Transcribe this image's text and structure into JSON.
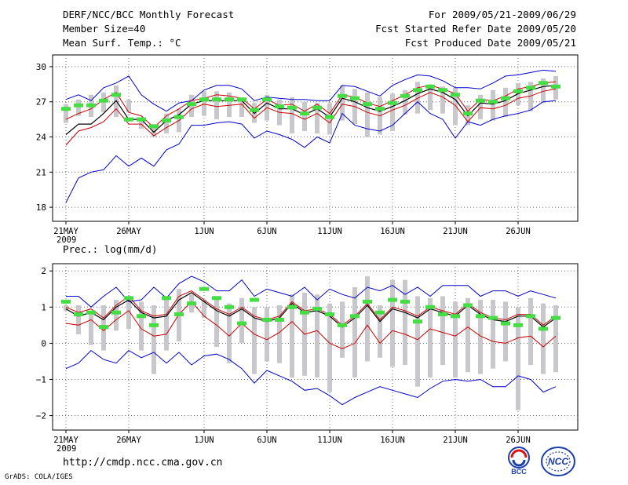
{
  "header": {
    "left": [
      "DERF/NCC/BCC Monthly Forecast",
      "Member Size=40",
      "Mean Surf. Temp.: °C"
    ],
    "right": [
      "For 2009/05/21-2009/06/29",
      "Fcst Started Refer Date 2009/05/20",
      "Fcst Produced Date 2009/05/21"
    ]
  },
  "footer": {
    "url": "http://cmdp.ncc.cma.gov.cn",
    "credit": "GrADS: COLA/IGES",
    "logo_bcc": "BCC",
    "logo_ncc": "NCC"
  },
  "colors": {
    "envelope": "#0000cc",
    "spread_lines": "#cc0000",
    "ensemble_mean": "#000000",
    "observed": "#44dd44",
    "iqr_bars": "#c8c8cc",
    "grid": "#666666"
  },
  "chart_data": [
    {
      "type": "line",
      "title": "Mean Surf. Temp.: °C",
      "x_tick_labels": [
        "21MAY",
        "26MAY",
        "1JUN",
        "6JUN",
        "11JUN",
        "16JUN",
        "21JUN",
        "26JUN"
      ],
      "x_tick_days": [
        1,
        6,
        12,
        17,
        22,
        27,
        32,
        37
      ],
      "year_label": "2009",
      "days": 40,
      "ylim": [
        16.8,
        31.0
      ],
      "y_ticks": [
        18,
        21,
        24,
        27,
        30
      ],
      "series": [
        {
          "name": "max",
          "values": [
            18.4,
            20.5,
            21.0,
            21.2,
            22.4,
            21.5,
            22.2,
            21.5,
            22.9,
            23.4,
            25.0,
            25.0,
            25.2,
            25.3,
            25.1,
            23.9,
            24.5,
            24.2,
            23.8,
            23.1,
            24.0,
            23.5,
            26.0,
            25.0,
            24.7,
            24.5,
            25.0,
            26.0,
            27.0,
            26.0,
            25.5,
            23.9,
            25.3,
            25.0,
            25.5,
            25.8,
            26.0,
            26.3,
            27.0,
            27.1
          ]
        },
        {
          "name": "min",
          "values": [
            27.2,
            27.6,
            27.1,
            28.2,
            28.6,
            29.2,
            27.6,
            26.8,
            26.2,
            26.9,
            27.1,
            28.0,
            28.4,
            28.4,
            28.1,
            27.1,
            27.4,
            27.3,
            27.2,
            27.2,
            27.1,
            27.1,
            28.4,
            28.3,
            27.9,
            27.5,
            28.4,
            28.9,
            29.3,
            29.2,
            28.8,
            28.2,
            28.2,
            28.1,
            28.6,
            29.2,
            29.3,
            29.5,
            29.7,
            29.6
          ]
        },
        {
          "name": "ensemble_mean",
          "values": [
            24.2,
            25.1,
            25.1,
            26.0,
            27.1,
            25.5,
            25.5,
            24.4,
            25.4,
            25.9,
            26.8,
            27.1,
            27.1,
            27.1,
            27.1,
            26.0,
            26.9,
            26.4,
            26.4,
            25.9,
            26.4,
            25.7,
            27.3,
            27.0,
            26.5,
            26.2,
            26.6,
            27.1,
            27.7,
            28.1,
            27.8,
            27.2,
            25.8,
            26.9,
            26.8,
            27.1,
            27.7,
            28.0,
            28.3,
            28.4
          ]
        },
        {
          "name": "spread_upper",
          "values": [
            25.5,
            26.0,
            26.4,
            27.2,
            27.8,
            26.1,
            25.8,
            24.8,
            25.8,
            26.4,
            27.1,
            27.3,
            27.6,
            27.5,
            27.3,
            26.4,
            27.2,
            26.7,
            26.8,
            26.2,
            26.8,
            26.0,
            27.6,
            27.4,
            26.9,
            26.6,
            27.1,
            27.6,
            28.2,
            28.4,
            28.1,
            27.7,
            26.2,
            27.2,
            27.1,
            27.5,
            28.1,
            28.3,
            28.6,
            28.7
          ]
        },
        {
          "name": "spread_lower",
          "values": [
            23.3,
            24.5,
            24.8,
            25.3,
            26.4,
            25.1,
            25.1,
            24.1,
            24.8,
            25.4,
            26.4,
            26.8,
            26.6,
            26.7,
            26.8,
            25.6,
            26.5,
            26.1,
            26.0,
            25.5,
            26.0,
            25.2,
            26.8,
            26.6,
            26.1,
            25.8,
            26.3,
            26.7,
            27.3,
            27.8,
            27.4,
            26.7,
            25.3,
            26.5,
            26.4,
            26.7,
            27.3,
            27.5,
            27.9,
            28.1
          ]
        },
        {
          "name": "iqr_bottom",
          "values": [
            25.2,
            25.8,
            25.7,
            26.1,
            25.7,
            26.1,
            24.7,
            24.0,
            24.3,
            24.4,
            25.7,
            25.8,
            25.5,
            25.7,
            25.7,
            25.2,
            25.4,
            25.0,
            24.3,
            24.5,
            24.3,
            24.2,
            25.4,
            25.1,
            24.0,
            24.2,
            24.5,
            25.9,
            26.0,
            26.3,
            26.0,
            25.0,
            25.0,
            25.5,
            25.4,
            25.7,
            26.7,
            26.2,
            26.9,
            27.2
          ]
        },
        {
          "name": "iqr_top",
          "values": [
            26.8,
            27.2,
            27.6,
            27.8,
            28.4,
            27.2,
            25.6,
            25.1,
            26.0,
            26.4,
            27.6,
            27.9,
            27.9,
            27.8,
            27.2,
            26.9,
            27.6,
            27.2,
            27.4,
            27.0,
            26.9,
            26.9,
            28.4,
            28.1,
            27.8,
            27.4,
            27.7,
            28.0,
            28.7,
            28.5,
            28.3,
            28.2,
            26.7,
            27.6,
            28.0,
            28.2,
            28.6,
            28.7,
            29.0,
            29.2
          ]
        },
        {
          "name": "observed",
          "values": [
            26.4,
            26.7,
            26.7,
            27.1,
            27.6,
            25.5,
            25.5,
            24.9,
            25.4,
            25.7,
            26.8,
            27.2,
            27.2,
            27.2,
            27.2,
            26.3,
            27.2,
            26.6,
            26.5,
            26.0,
            26.5,
            25.7,
            27.5,
            27.3,
            26.8,
            26.4,
            26.9,
            27.5,
            28.0,
            28.3,
            28.0,
            27.6,
            26.0,
            27.1,
            27.0,
            27.3,
            27.9,
            28.2,
            28.6,
            28.3
          ]
        }
      ]
    },
    {
      "type": "line",
      "title": "Prec.: log(mm/d)",
      "x_tick_labels": [
        "21MAY",
        "26MAY",
        "1JUN",
        "6JUN",
        "11JUN",
        "16JUN",
        "21JUN",
        "26JUN"
      ],
      "x_tick_days": [
        1,
        6,
        12,
        17,
        22,
        27,
        32,
        37
      ],
      "year_label": "2009",
      "days": 40,
      "ylim": [
        -2.4,
        2.2
      ],
      "y_ticks": [
        -2,
        -1,
        0,
        1,
        2
      ],
      "series": [
        {
          "name": "max",
          "values": [
            -0.7,
            -0.55,
            -0.2,
            -0.45,
            -0.55,
            -0.2,
            -0.4,
            -0.25,
            -0.55,
            -0.25,
            -0.6,
            -0.35,
            -0.3,
            -0.45,
            -0.7,
            -1.1,
            -0.75,
            -0.9,
            -1.05,
            -1.3,
            -1.25,
            -1.45,
            -1.7,
            -1.5,
            -1.35,
            -1.2,
            -1.3,
            -1.4,
            -1.5,
            -1.25,
            -1.05,
            -1.0,
            -1.05,
            -1.0,
            -1.2,
            -1.2,
            -0.9,
            -1.0,
            -1.35,
            -1.2
          ]
        },
        {
          "name": "min",
          "values": [
            1.3,
            1.3,
            1.0,
            1.3,
            1.55,
            1.15,
            1.2,
            1.55,
            1.25,
            1.65,
            1.85,
            1.7,
            1.45,
            1.45,
            1.75,
            1.3,
            1.5,
            1.4,
            1.3,
            1.55,
            1.2,
            1.5,
            1.35,
            1.25,
            1.55,
            1.45,
            1.6,
            1.35,
            1.55,
            1.3,
            1.6,
            1.6,
            1.6,
            1.3,
            1.45,
            1.45,
            1.3,
            1.45,
            1.35,
            1.25
          ]
        },
        {
          "name": "ensemble_mean",
          "values": [
            0.95,
            0.75,
            0.85,
            0.65,
            1.0,
            1.2,
            0.85,
            0.7,
            0.75,
            1.2,
            1.4,
            1.15,
            0.9,
            0.75,
            0.95,
            0.7,
            0.6,
            0.7,
            1.1,
            0.85,
            0.9,
            0.75,
            0.45,
            0.7,
            1.05,
            0.6,
            0.95,
            0.85,
            0.7,
            0.95,
            0.85,
            0.75,
            1.05,
            0.8,
            0.65,
            0.6,
            0.75,
            0.75,
            0.45,
            0.7
          ]
        },
        {
          "name": "spread_upper",
          "values": [
            1.0,
            0.85,
            0.95,
            0.7,
            1.05,
            1.3,
            0.9,
            0.75,
            0.8,
            1.3,
            1.45,
            1.2,
            0.95,
            0.8,
            1.0,
            0.75,
            0.65,
            0.75,
            1.15,
            0.9,
            0.95,
            0.8,
            0.5,
            0.75,
            1.1,
            0.65,
            1.0,
            0.9,
            0.75,
            1.0,
            0.9,
            0.8,
            1.1,
            0.85,
            0.7,
            0.65,
            0.8,
            0.8,
            0.5,
            0.75
          ]
        },
        {
          "name": "spread_lower",
          "values": [
            0.55,
            0.5,
            0.65,
            0.35,
            0.65,
            0.9,
            0.4,
            0.2,
            0.25,
            0.8,
            1.15,
            0.75,
            0.5,
            0.2,
            0.55,
            0.25,
            0.1,
            0.3,
            0.6,
            0.25,
            0.35,
            0.0,
            -0.15,
            0.0,
            0.5,
            0.0,
            0.35,
            0.25,
            0.1,
            0.4,
            0.3,
            0.2,
            0.45,
            0.2,
            0.05,
            0.0,
            0.15,
            0.2,
            -0.1,
            0.2
          ]
        },
        {
          "name": "iqr_bottom",
          "values": [
            0.9,
            0.25,
            -0.05,
            -0.2,
            0.35,
            0.4,
            -0.2,
            -0.85,
            -0.2,
            0.05,
            0.85,
            0.7,
            -0.1,
            -0.55,
            0.0,
            -0.85,
            -0.5,
            -0.55,
            -0.95,
            -0.9,
            -0.95,
            -1.35,
            -0.4,
            -0.95,
            -0.5,
            -0.4,
            -0.65,
            -0.6,
            -1.2,
            -0.95,
            -0.6,
            -0.95,
            -0.8,
            -0.85,
            -0.7,
            -0.5,
            -1.85,
            -0.6,
            -0.85,
            -0.8
          ]
        },
        {
          "name": "iqr_top",
          "values": [
            1.05,
            1.05,
            0.9,
            1.05,
            1.2,
            1.25,
            1.15,
            1.05,
            1.25,
            1.5,
            1.35,
            1.2,
            1.25,
            1.1,
            1.25,
            1.0,
            1.0,
            1.05,
            1.35,
            1.4,
            1.35,
            1.1,
            1.15,
            1.55,
            1.85,
            1.05,
            1.75,
            1.75,
            1.3,
            1.25,
            1.3,
            1.15,
            1.25,
            1.2,
            1.2,
            1.15,
            1.0,
            1.25,
            1.1,
            1.05
          ]
        },
        {
          "name": "observed",
          "values": [
            1.15,
            0.8,
            0.85,
            0.45,
            0.85,
            1.25,
            0.75,
            0.5,
            1.25,
            0.8,
            1.1,
            1.5,
            1.25,
            1.0,
            0.55,
            1.2,
            0.65,
            0.65,
            1.0,
            0.85,
            0.95,
            0.8,
            0.5,
            0.75,
            1.15,
            0.85,
            1.2,
            1.15,
            0.6,
            1.0,
            0.8,
            0.75,
            1.05,
            0.75,
            0.7,
            0.55,
            0.5,
            0.75,
            0.4,
            0.7
          ]
        }
      ]
    }
  ]
}
